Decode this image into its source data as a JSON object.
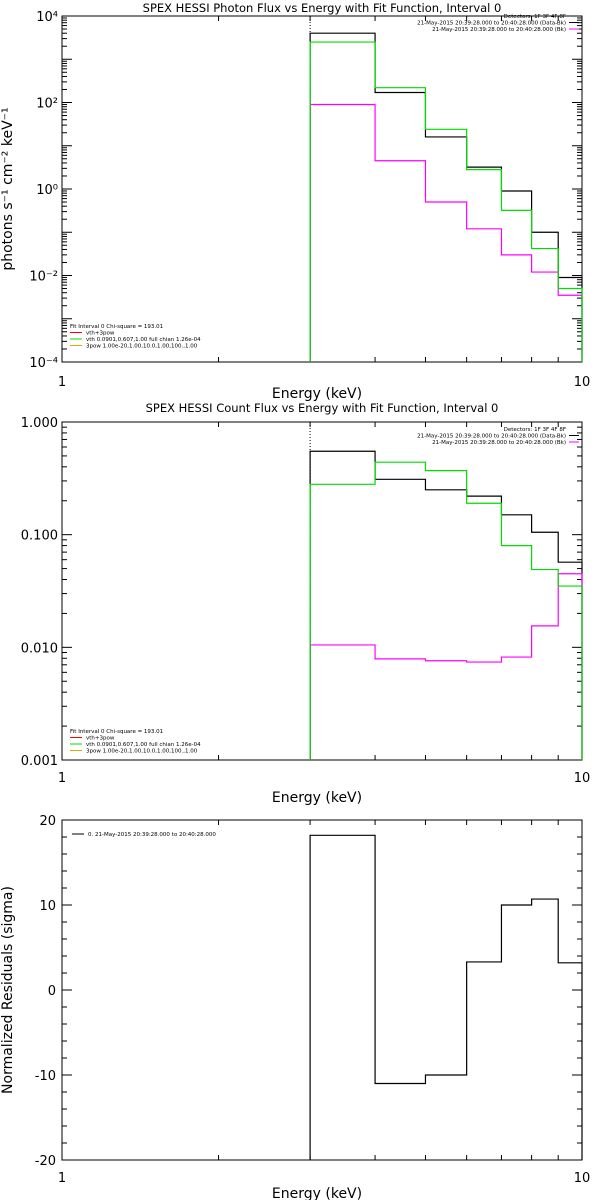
{
  "chart_data": [
    {
      "type": "line",
      "title": "SPEX HESSI Photon Flux vs Energy with Fit Function, Interval 0",
      "xlabel": "Energy (keV)",
      "ylabel": "photons s⁻¹ cm⁻² keV⁻¹",
      "xscale": "log",
      "yscale": "log",
      "xlim": [
        1,
        10
      ],
      "ylim": [
        0.0001,
        10000
      ],
      "xticks": [
        "1",
        "10"
      ],
      "yticks": [
        "10⁴",
        "10²",
        "10⁰",
        "10⁻²",
        "10⁻⁴"
      ],
      "marker_x": 3,
      "bin_edges": [
        3,
        4,
        5,
        6,
        7,
        8,
        9,
        10
      ],
      "legend_top_right": [
        "Detectors: 1F 3F 4F 8F",
        "21-May-2015 20:39:28.000 to 20:40:28.000 (Data-Bk)",
        "21-May-2015 20:39:28.000 to 20:40:28.000 (Bk)"
      ],
      "legend_bottom_left": [
        "Fit Interval 0   Chi-square = 193.01",
        "vth+3pow",
        "vth 0.0901,0.607,1.00  full chian 1.26e-04",
        "3pow 1.00e-20,1.00,10.0,1.00,100.,1.00"
      ],
      "series": [
        {
          "name": "21-May-2015 20:39:28.000 to 20:40:28.000 (Data-Bk)",
          "color": "#000000",
          "values": [
            4000,
            170,
            16,
            3.2,
            0.9,
            0.1,
            0.009
          ]
        },
        {
          "name": "21-May-2015 20:39:28.000 to 20:40:28.000 (Bk)",
          "color": "#ff00ff",
          "values": [
            90,
            4.5,
            0.5,
            0.12,
            0.03,
            0.012,
            0.0035
          ]
        },
        {
          "name": "vth+3pow",
          "color": "#00dd00",
          "values": [
            2500,
            220,
            24,
            2.8,
            0.32,
            0.042,
            0.005
          ]
        }
      ]
    },
    {
      "type": "line",
      "title": "SPEX HESSI Count Flux vs Energy with Fit Function, Interval 0",
      "xlabel": "Energy (keV)",
      "ylabel": "",
      "xscale": "log",
      "yscale": "log",
      "xlim": [
        1,
        10
      ],
      "ylim": [
        0.001,
        1.0
      ],
      "xticks": [
        "1",
        "10"
      ],
      "yticks": [
        "1.000",
        "0.100",
        "0.010",
        "0.001"
      ],
      "marker_x": 3,
      "bin_edges": [
        3,
        4,
        5,
        6,
        7,
        8,
        9,
        10
      ],
      "legend_top_right": [
        "Detectors: 1F 3F 4F 8F",
        "21-May-2015 20:39:28.000 to 20:40:28.000 (Data-Bk)",
        "21-May-2015 20:39:28.000 to 20:40:28.000 (Bk)"
      ],
      "legend_bottom_left": [
        "Fit Interval 0   Chi-square = 193.01",
        "vth+3pow",
        "vth 0.0901,0.607,1.00  full chian 1.26e-04",
        "3pow 1.00e-20,1.00,10.0,1.00,100.,1.00"
      ],
      "series": [
        {
          "name": "21-May-2015 20:39:28.000 to 20:40:28.000 (Data-Bk)",
          "color": "#000000",
          "values": [
            0.55,
            0.31,
            0.25,
            0.22,
            0.15,
            0.105,
            0.057
          ]
        },
        {
          "name": "21-May-2015 20:39:28.000 to 20:40:28.000 (Bk)",
          "color": "#ff00ff",
          "values": [
            0.0105,
            0.0079,
            0.0076,
            0.0074,
            0.0082,
            0.0155,
            0.045
          ]
        },
        {
          "name": "vth+3pow",
          "color": "#00dd00",
          "values": [
            0.28,
            0.44,
            0.37,
            0.19,
            0.08,
            0.049,
            0.035
          ]
        }
      ]
    },
    {
      "type": "line",
      "title": "",
      "xlabel": "Energy (keV)",
      "ylabel": "Normalized Residuals (sigma)",
      "xscale": "log",
      "yscale": "linear",
      "xlim": [
        1,
        10
      ],
      "ylim": [
        -20,
        20
      ],
      "xticks": [
        "1",
        "10"
      ],
      "yticks": [
        "20",
        "10",
        "0",
        "-10",
        "-20"
      ],
      "bin_edges": [
        3,
        4,
        5,
        6,
        7,
        8,
        9,
        10
      ],
      "legend_top_left": [
        "0. 21-May-2015 20:39:28.000 to 20:40:28.000"
      ],
      "series": [
        {
          "name": "0. 21-May-2015 20:39:28.000 to 20:40:28.000",
          "color": "#000000",
          "values": [
            18.2,
            -11.0,
            -10.0,
            3.3,
            10.0,
            10.7,
            3.2
          ]
        }
      ]
    }
  ]
}
